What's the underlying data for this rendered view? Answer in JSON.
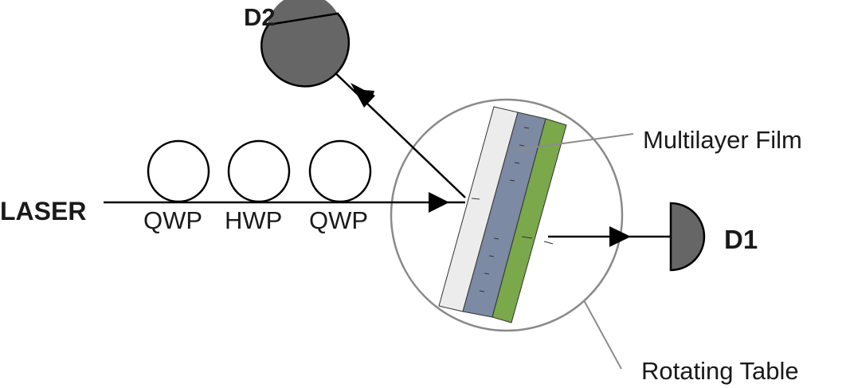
{
  "labels": {
    "laser": "LASER",
    "qwp_1": "QWP",
    "hwp": "HWP",
    "qwp_2": "QWP",
    "detector_1": "D1",
    "detector_2": "D2",
    "multilayer_film": "Multilayer Film",
    "rotating_table": "Rotating Table"
  },
  "colors": {
    "line": "#000000",
    "callout_line": "#8c8c8c",
    "detector_fill": "#666666",
    "table_outline": "#8a8a8a",
    "substrate": "#ececec",
    "film_layer": "#7d8aa3",
    "green_layer": "#7aa84b"
  }
}
